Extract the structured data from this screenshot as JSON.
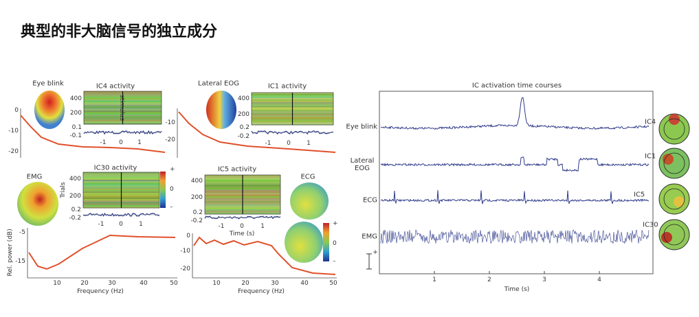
{
  "title": "典型的非大脑信号的独立成分",
  "eye_blink": {
    "name": "Eye blink",
    "activity": "IC4 activity",
    "stimulus": "stimulus",
    "trials": [
      "400",
      "200"
    ],
    "erp": [
      "0.1",
      "-0.1"
    ],
    "time": [
      "-1",
      "0",
      "1"
    ],
    "power": [
      "0",
      "-10",
      "-20"
    ]
  },
  "lateral_eog": {
    "name": "Lateral EOG",
    "activity": "IC1 activity",
    "trials": [
      "400",
      "200"
    ],
    "erp": [
      "0.2",
      "-0.2"
    ],
    "time": [
      "-1",
      "0",
      "1"
    ],
    "power": [
      "-10",
      "-20"
    ]
  },
  "emg": {
    "name": "EMG",
    "activity": "IC30 activity",
    "trials_label": "Trials",
    "trials": [
      "400",
      "200"
    ],
    "erp": [
      "0.2",
      "-0.2"
    ],
    "time": [
      "-1",
      "0",
      "1"
    ],
    "colorbar": [
      "+",
      "0",
      "–"
    ],
    "power_label": "Rel. power (dB)",
    "power": [
      "-5",
      "-15"
    ],
    "freq": [
      "10",
      "20",
      "30",
      "40",
      "50"
    ],
    "freq_label": "Frequency (Hz)"
  },
  "ecg": {
    "name": "ECG",
    "activity": "IC5 activity",
    "trials": [
      "400",
      "200"
    ],
    "erp": [
      "0.2",
      "-0.2"
    ],
    "time": [
      "-1",
      "0",
      "1"
    ],
    "time_label": "Time (s)",
    "colorbar": [
      "+",
      "0",
      "–"
    ],
    "power": [
      "0",
      "-10",
      "-20"
    ],
    "freq": [
      "10",
      "20",
      "30",
      "40",
      "50"
    ],
    "freq_label": "Frequency (Hz)"
  },
  "time_courses": {
    "title": "IC activation time courses",
    "rows": [
      {
        "label": "Eye blink",
        "ic": "IC4"
      },
      {
        "label": "Lateral EOG",
        "ic": "IC1"
      },
      {
        "label": "ECG",
        "ic": "IC5"
      },
      {
        "label": "EMG",
        "ic": "IC30"
      }
    ],
    "scale": "+",
    "time": [
      "1",
      "2",
      "3",
      "4"
    ],
    "time_label": "Time (s)"
  }
}
